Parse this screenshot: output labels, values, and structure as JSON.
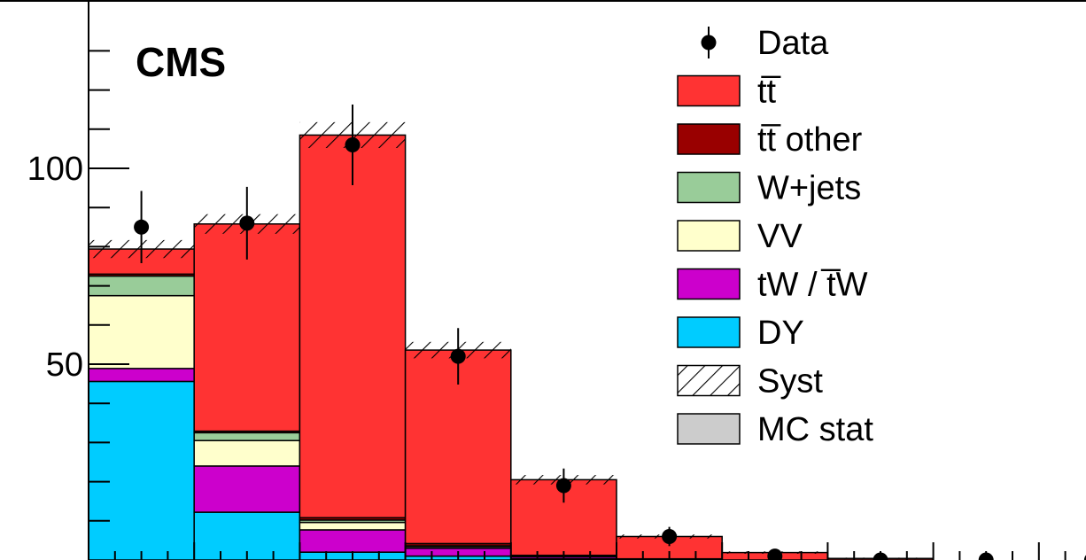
{
  "chart_data": {
    "type": "bar",
    "stacked": true,
    "experiment_label": "CMS",
    "xlabel": "",
    "ylabel": "",
    "ylim": [
      0,
      135
    ],
    "y_ticks": [
      50,
      100
    ],
    "bins": 10,
    "series": [
      {
        "name": "DY",
        "color": "#00ccff",
        "values": [
          45.6,
          12.2,
          2.0,
          1.0,
          0.3,
          0.1,
          0,
          0,
          0,
          0
        ]
      },
      {
        "name": "tW / t̅W",
        "color": "#cc00cc",
        "values": [
          3.3,
          11.8,
          5.7,
          2.0,
          0.5,
          0.1,
          0,
          0,
          0,
          0
        ]
      },
      {
        "name": "VV",
        "color": "#ffffcc",
        "values": [
          18.6,
          6.5,
          1.9,
          0.4,
          0.1,
          0,
          0,
          0,
          0,
          0
        ]
      },
      {
        "name": "W+jets",
        "color": "#99cc99",
        "values": [
          5.0,
          2.0,
          0.6,
          0.2,
          0,
          0,
          0,
          0,
          0,
          0
        ]
      },
      {
        "name": "t̅t other",
        "color": "#990000",
        "values": [
          0.5,
          0.4,
          0.6,
          0.6,
          0.3,
          0.1,
          0,
          0,
          0,
          0
        ]
      },
      {
        "name": "tt̅",
        "color": "#ff3333",
        "values": [
          6.4,
          52.9,
          97.7,
          49.4,
          19.3,
          5.7,
          1.9,
          0.4,
          0,
          0
        ]
      }
    ],
    "syst_halfwidth": [
      2.3,
      2.5,
      3.3,
      2.1,
      1.2,
      0.5,
      0.3,
      0.2,
      0,
      0
    ],
    "data": [
      85,
      86,
      106,
      52,
      19,
      6,
      1,
      0,
      0,
      0
    ],
    "legend": [
      {
        "label": "Data",
        "kind": "marker"
      },
      {
        "label": "tt̅",
        "kind": "box",
        "color": "#ff3333"
      },
      {
        "label": "tt̅ other",
        "kind": "box",
        "color": "#990000"
      },
      {
        "label": "W+jets",
        "kind": "box",
        "color": "#99cc99"
      },
      {
        "label": "VV",
        "kind": "box",
        "color": "#ffffcc"
      },
      {
        "label": "tW / t̅W",
        "kind": "box",
        "color": "#cc00cc"
      },
      {
        "label": "DY",
        "kind": "box",
        "color": "#00ccff"
      },
      {
        "label": "Syst",
        "kind": "hatch"
      },
      {
        "label": "MC stat",
        "kind": "box",
        "color": "#cccccc"
      }
    ],
    "legend_position": "top-right",
    "grid": false
  }
}
